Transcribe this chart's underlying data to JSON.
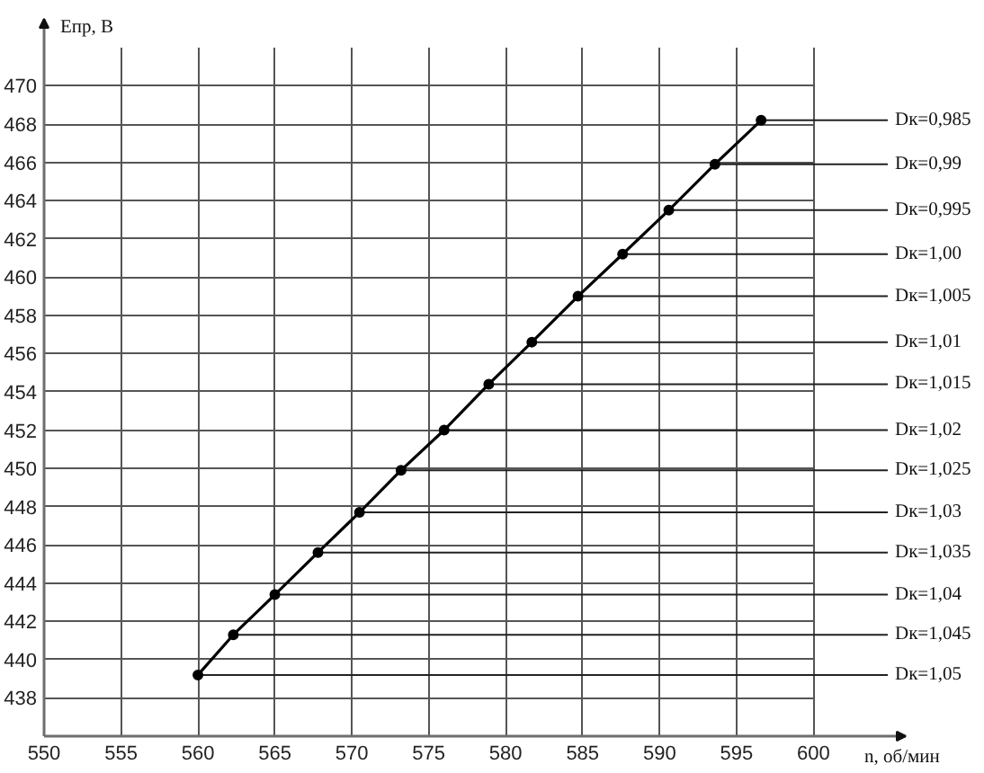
{
  "chart_data": {
    "type": "line",
    "xlabel": "n, об/мин",
    "ylabel": "Епр, В",
    "x": [
      560.0,
      562.3,
      565.0,
      567.8,
      570.5,
      573.2,
      576.0,
      578.9,
      581.7,
      584.7,
      587.6,
      590.6,
      593.6,
      596.6
    ],
    "series": [
      {
        "color": "#000000",
        "values": [
          439.2,
          441.3,
          443.4,
          445.6,
          447.7,
          449.9,
          452.0,
          454.4,
          456.6,
          459.0,
          461.2,
          463.5,
          465.9,
          468.2
        ]
      }
    ],
    "xlim": [
      550,
      606
    ],
    "ylim": [
      436,
      473.5
    ],
    "xticks": [
      550,
      555,
      560,
      565,
      570,
      575,
      580,
      585,
      590,
      595,
      600
    ],
    "yticks": [
      438,
      440,
      442,
      444,
      446,
      448,
      450,
      452,
      454,
      456,
      458,
      460,
      462,
      464,
      466,
      468,
      470
    ],
    "grid": true,
    "marker": "circle",
    "line_style": "solid",
    "annotations": [
      {
        "text": "Dк=0,985",
        "x": 596.6,
        "y": 468.2
      },
      {
        "text": "Dк=0,99",
        "x": 593.6,
        "y": 465.9
      },
      {
        "text": "Dк=0,995",
        "x": 590.6,
        "y": 463.5
      },
      {
        "text": "Dк=1,00",
        "x": 587.6,
        "y": 461.2
      },
      {
        "text": "Dк=1,005",
        "x": 584.7,
        "y": 459.0
      },
      {
        "text": "Dк=1,01",
        "x": 581.7,
        "y": 456.6
      },
      {
        "text": "Dк=1,015",
        "x": 578.9,
        "y": 454.4
      },
      {
        "text": "Dк=1,02",
        "x": 576.0,
        "y": 452.0
      },
      {
        "text": "Dк=1,025",
        "x": 573.2,
        "y": 449.9
      },
      {
        "text": "Dк=1,03",
        "x": 570.5,
        "y": 447.7
      },
      {
        "text": "Dк=1,035",
        "x": 567.8,
        "y": 445.6
      },
      {
        "text": "Dк=1,04",
        "x": 565.0,
        "y": 443.4
      },
      {
        "text": "Dк=1,045",
        "x": 562.3,
        "y": 441.3
      },
      {
        "text": "Dк=1,05",
        "x": 560.0,
        "y": 439.2
      }
    ]
  }
}
